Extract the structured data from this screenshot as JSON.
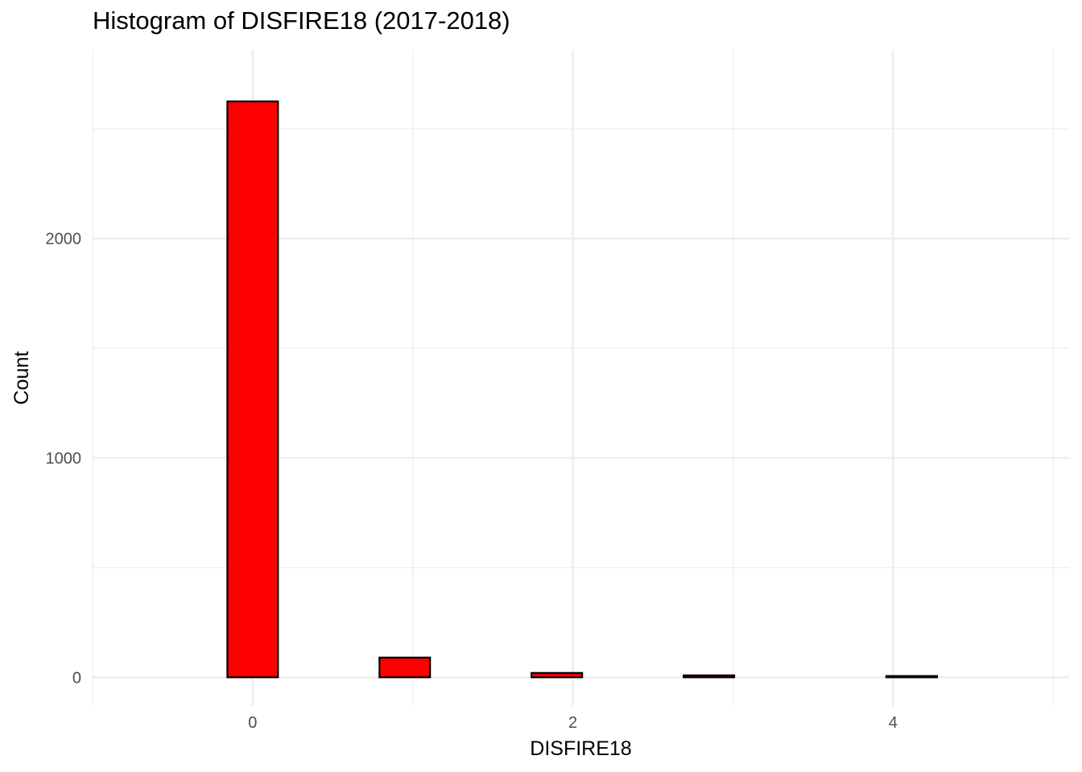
{
  "chart_data": {
    "type": "bar",
    "title": "Histogram of DISFIRE18 (2017-2018)",
    "xlabel": "DISFIRE18",
    "ylabel": "Count",
    "bin_width": 0.3167,
    "bins": [
      {
        "x0": -0.792,
        "x1": -0.475,
        "count": 0
      },
      {
        "x0": -0.475,
        "x1": -0.158,
        "count": 0
      },
      {
        "x0": -0.158,
        "x1": 0.158,
        "count": 2625
      },
      {
        "x0": 0.158,
        "x1": 0.475,
        "count": 0
      },
      {
        "x0": 0.475,
        "x1": 0.792,
        "count": 0
      },
      {
        "x0": 0.792,
        "x1": 1.108,
        "count": 90
      },
      {
        "x0": 1.108,
        "x1": 1.425,
        "count": 0
      },
      {
        "x0": 1.425,
        "x1": 1.742,
        "count": 0
      },
      {
        "x0": 1.742,
        "x1": 2.058,
        "count": 20
      },
      {
        "x0": 2.058,
        "x1": 2.375,
        "count": 0
      },
      {
        "x0": 2.375,
        "x1": 2.692,
        "count": 0
      },
      {
        "x0": 2.692,
        "x1": 3.008,
        "count": 9
      },
      {
        "x0": 3.008,
        "x1": 3.325,
        "count": 0
      },
      {
        "x0": 3.325,
        "x1": 3.642,
        "count": 0
      },
      {
        "x0": 3.642,
        "x1": 3.958,
        "count": 0
      },
      {
        "x0": 3.958,
        "x1": 4.275,
        "count": 6
      },
      {
        "x0": 4.275,
        "x1": 4.592,
        "count": 0
      },
      {
        "x0": 4.592,
        "x1": 4.908,
        "count": 0
      }
    ],
    "x_ticks": [
      0,
      2,
      4
    ],
    "y_ticks": [
      0,
      1000,
      2000
    ],
    "xlim": [
      -1,
      5.1
    ],
    "ylim": [
      -131,
      2860
    ],
    "grid": true,
    "colors": {
      "fill": "#ff0000",
      "stroke": "#000000",
      "grid": "#ebebeb"
    }
  }
}
